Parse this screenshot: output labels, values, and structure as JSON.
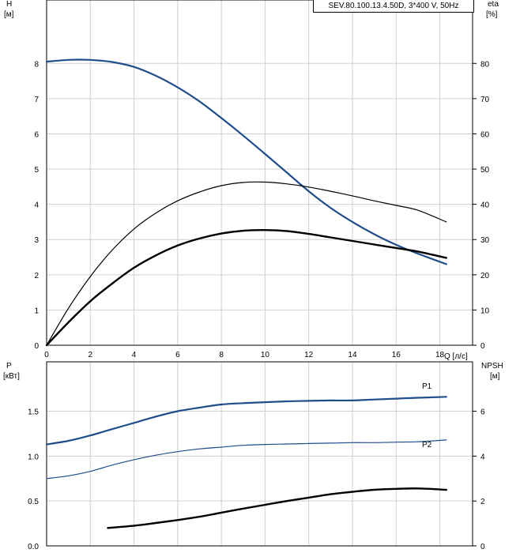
{
  "model_label": "SEV.80.100.13.4.50D, 3*400 V, 50Hz",
  "chart_data": [
    {
      "type": "line",
      "axes": {
        "x": {
          "label": "Q [л/с]",
          "range": [
            0,
            19.5
          ],
          "ticks": [
            0,
            2,
            4,
            6,
            8,
            10,
            12,
            14,
            16,
            18
          ]
        },
        "y_left": {
          "label_line1": "H",
          "label_line2": "[м]",
          "range": [
            0,
            9.8
          ],
          "ticks": [
            0,
            1,
            2,
            3,
            4,
            5,
            6,
            7,
            8
          ]
        },
        "y_right": {
          "label_line1": "eta",
          "label_line2": "[%]",
          "range": [
            0,
            98
          ],
          "ticks": [
            0,
            10,
            20,
            30,
            40,
            50,
            60,
            70,
            80
          ]
        }
      },
      "grid": true,
      "series": [
        {
          "axis": "left",
          "color": "#1f4e8c",
          "width": 2.2,
          "x": [
            0,
            1,
            2,
            3,
            4,
            5,
            6,
            7,
            8,
            9,
            10,
            11,
            12,
            13,
            14,
            15,
            16,
            17,
            18.3
          ],
          "values": [
            8.05,
            8.1,
            8.1,
            8.04,
            7.9,
            7.65,
            7.32,
            6.92,
            6.45,
            5.95,
            5.43,
            4.9,
            4.37,
            3.9,
            3.5,
            3.15,
            2.85,
            2.6,
            2.3
          ]
        },
        {
          "axis": "right",
          "color": "#000000",
          "width": 1.2,
          "x": [
            0,
            1,
            2,
            3,
            4,
            5,
            6,
            7,
            8,
            9,
            10,
            11,
            12,
            13,
            14,
            15,
            16,
            17,
            18.3
          ],
          "values": [
            0,
            10.5,
            19.5,
            27,
            33,
            37.5,
            41,
            43.5,
            45.3,
            46.2,
            46.3,
            45.8,
            44.9,
            43.7,
            42.4,
            41,
            39.7,
            38.3,
            35
          ]
        },
        {
          "axis": "right",
          "color": "#000000",
          "width": 2.4,
          "x": [
            0,
            1,
            2,
            3,
            4,
            5,
            6,
            7,
            8,
            9,
            10,
            11,
            12,
            13,
            14,
            15,
            16,
            17,
            18.3
          ],
          "values": [
            0,
            6.5,
            12.5,
            17.5,
            22,
            25.5,
            28.3,
            30.3,
            31.7,
            32.5,
            32.7,
            32.4,
            31.6,
            30.6,
            29.6,
            28.6,
            27.6,
            26.6,
            24.8
          ]
        }
      ]
    },
    {
      "type": "line",
      "axes": {
        "y_left": {
          "label_line1": "P",
          "label_line2": "[кВт]",
          "range": [
            0,
            2.05
          ],
          "ticks": [
            "0.0",
            "0.5",
            "1.0",
            "1.5"
          ]
        },
        "y_right": {
          "label_line1": "NPSH",
          "label_line2": "[м]",
          "range": [
            0,
            8.2
          ],
          "ticks": [
            0,
            2,
            4,
            6
          ]
        }
      },
      "grid": true,
      "series": [
        {
          "name": "P1",
          "axis": "left",
          "color": "#1f4e8c",
          "width": 2.2,
          "x": [
            0,
            1,
            2,
            3,
            4,
            5,
            6,
            7,
            8,
            9,
            10,
            11,
            12,
            13,
            14,
            15,
            16,
            17,
            18.3
          ],
          "values": [
            1.13,
            1.17,
            1.23,
            1.3,
            1.37,
            1.44,
            1.5,
            1.54,
            1.575,
            1.59,
            1.6,
            1.61,
            1.615,
            1.62,
            1.62,
            1.63,
            1.64,
            1.65,
            1.66
          ]
        },
        {
          "name": "P2",
          "axis": "left",
          "color": "#1f4e8c",
          "width": 1.2,
          "x": [
            0,
            1,
            2,
            3,
            4,
            5,
            6,
            7,
            8,
            9,
            10,
            11,
            12,
            13,
            14,
            15,
            16,
            17,
            18.3
          ],
          "values": [
            0.75,
            0.78,
            0.83,
            0.9,
            0.96,
            1.01,
            1.05,
            1.08,
            1.1,
            1.12,
            1.13,
            1.135,
            1.14,
            1.145,
            1.15,
            1.15,
            1.155,
            1.16,
            1.18
          ]
        },
        {
          "axis": "right",
          "color": "#000000",
          "width": 2.4,
          "x": [
            2.8,
            4,
            5,
            6,
            7,
            8,
            9,
            10,
            11,
            12,
            13,
            14,
            15,
            16,
            17,
            18.3
          ],
          "values": [
            0.8,
            0.9,
            1.02,
            1.15,
            1.3,
            1.48,
            1.66,
            1.83,
            2.0,
            2.15,
            2.3,
            2.41,
            2.5,
            2.54,
            2.56,
            2.5
          ]
        }
      ]
    }
  ]
}
